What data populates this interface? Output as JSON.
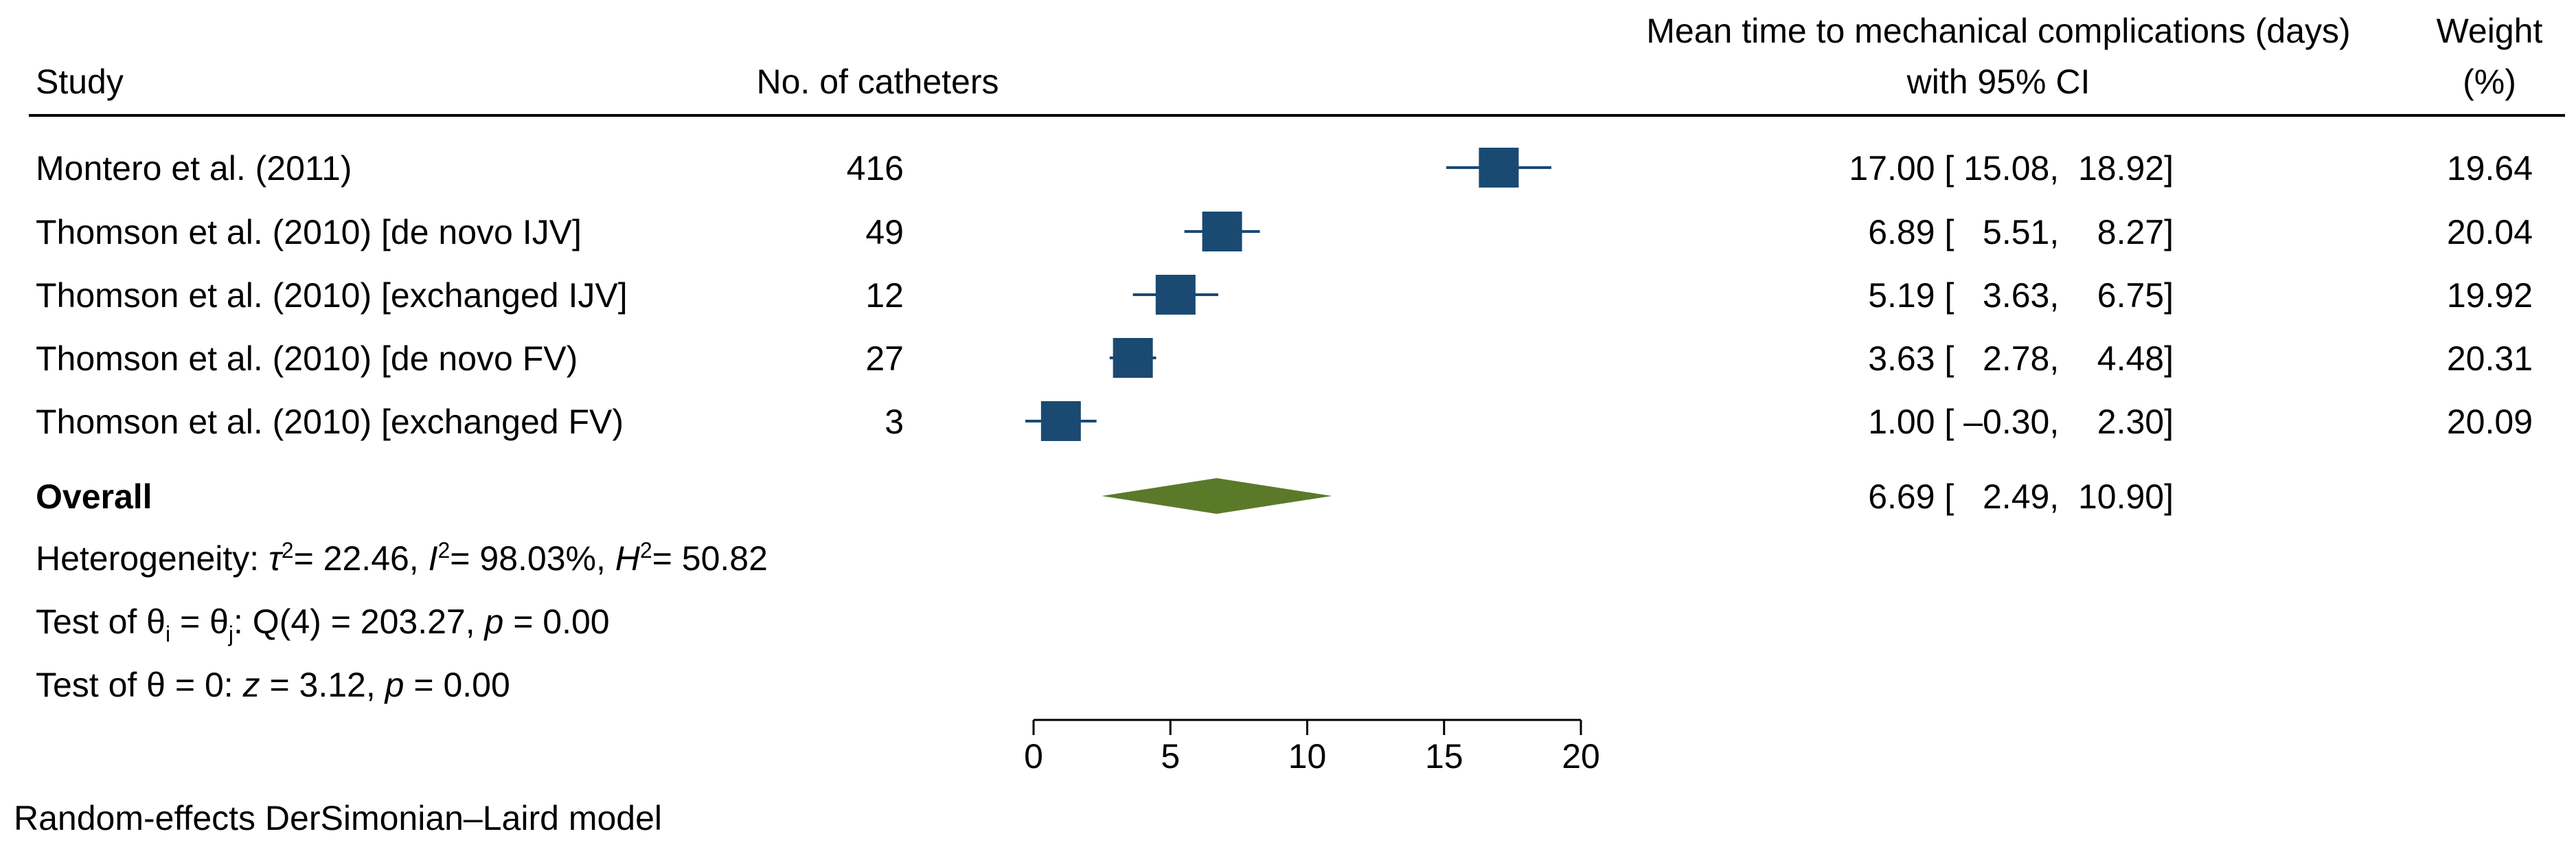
{
  "header": {
    "study": "Study",
    "catheters": "No. of catheters",
    "effect_line1": "Mean time to mechanical complications (days)",
    "effect_line2": "with 95% CI",
    "weight_line1": "Weight",
    "weight_line2": "(%)"
  },
  "colors": {
    "marker": "#1a4a72",
    "diamond": "#5a7a2a"
  },
  "chart_data": {
    "type": "forest",
    "xlim": [
      0,
      20
    ],
    "xticks": [
      0,
      5,
      10,
      15,
      20
    ],
    "xtick_labels": [
      "0",
      "5",
      "10",
      "15",
      "20"
    ],
    "studies": [
      {
        "label": "Montero et al. (2011)",
        "n": "416",
        "est": 17.0,
        "lo": 15.08,
        "hi": 18.92,
        "ci_text": "17.00 [ 15.08,  18.92]",
        "weight": "19.64"
      },
      {
        "label": "Thomson et al. (2010) [de novo IJV]",
        "n": "49",
        "est": 6.89,
        "lo": 5.51,
        "hi": 8.27,
        "ci_text": "6.89 [   5.51,    8.27]",
        "weight": "20.04"
      },
      {
        "label": "Thomson et al. (2010) [exchanged IJV]",
        "n": "12",
        "est": 5.19,
        "lo": 3.63,
        "hi": 6.75,
        "ci_text": "5.19 [   3.63,    6.75]",
        "weight": "19.92"
      },
      {
        "label": "Thomson et al. (2010) [de novo FV)",
        "n": "27",
        "est": 3.63,
        "lo": 2.78,
        "hi": 4.48,
        "ci_text": "3.63 [   2.78,    4.48]",
        "weight": "20.31"
      },
      {
        "label": "Thomson et al. (2010) [exchanged FV)",
        "n": "3",
        "est": 1.0,
        "lo": -0.3,
        "hi": 2.3,
        "ci_text": "1.00 [ –0.30,    2.30]",
        "weight": "20.09"
      }
    ],
    "overall": {
      "label": "Overall",
      "est": 6.69,
      "lo": 2.49,
      "hi": 10.9,
      "ci_text": "6.69 [   2.49,  10.90]"
    }
  },
  "stats": {
    "heterogeneity_label": "Heterogeneity: ",
    "tau_symbol": "τ",
    "tau_value": "= 22.46, ",
    "i_symbol": "I",
    "i_value": "= 98.03%, ",
    "h_symbol": "H",
    "h_value": "= 50.82",
    "sup2": "2",
    "test1_prefix": "Test of θ",
    "sub_i": "i",
    "test1_mid": " = θ",
    "sub_j": "j",
    "test1_suffix": ": Q(4) = 203.27, ",
    "p_symbol": "p",
    "test1_p": " = 0.00",
    "test2_prefix": "Test of θ = 0: ",
    "z_symbol": "z",
    "test2_z": " = 3.12, ",
    "test2_p": " = 0.00"
  },
  "footer": {
    "model": "Random-effects DerSimonian–Laird model"
  }
}
